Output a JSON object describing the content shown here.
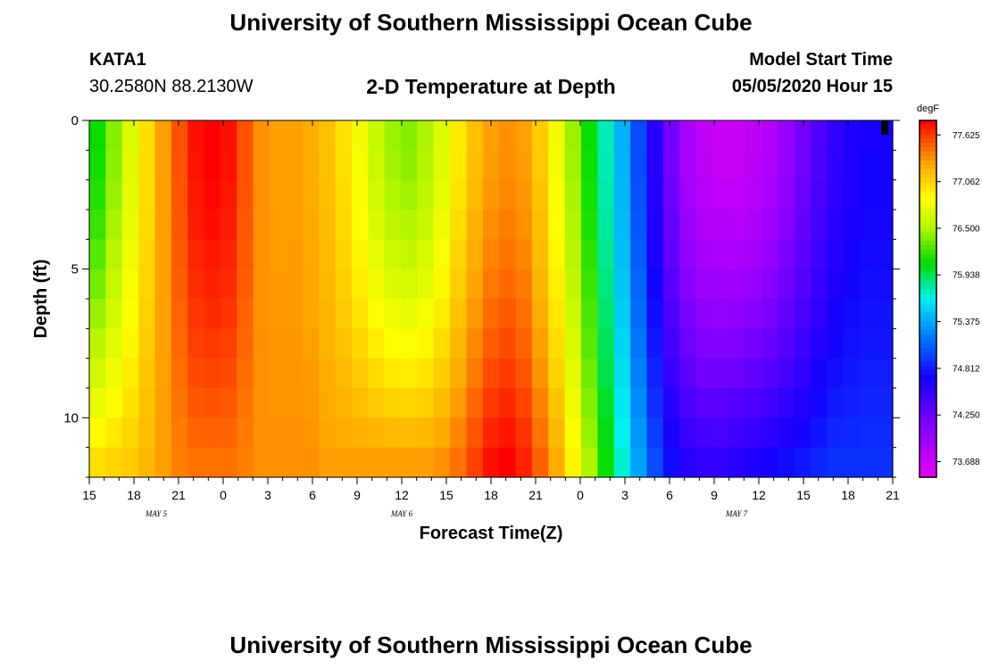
{
  "header": {
    "title": "University of Southern Mississippi Ocean Cube",
    "station": "KATA1",
    "coords": "30.2580N 88.2130W",
    "plot_title": "2-D Temperature at Depth",
    "model_label": "Model Start Time",
    "model_time": "05/05/2020 Hour 15"
  },
  "footer": {
    "title": "University of Southern Mississippi Ocean Cube"
  },
  "chart_data": {
    "type": "heatmap",
    "title": "2-D Temperature at Depth",
    "xlabel": "Forecast Time(Z)",
    "ylabel": "Depth (ft)",
    "x_hours_range": [
      0,
      54
    ],
    "x_tick_labels": [
      "15",
      "18",
      "21",
      "0",
      "3",
      "6",
      "9",
      "12",
      "15",
      "18",
      "21",
      "0",
      "3",
      "6",
      "9",
      "12",
      "15",
      "18",
      "21"
    ],
    "date_labels": [
      {
        "label": "MAY 5",
        "hour": 4.5
      },
      {
        "label": "MAY 6",
        "hour": 21
      },
      {
        "label": "MAY 7",
        "hour": 43.5
      }
    ],
    "y_range_ft": [
      0,
      12
    ],
    "y_tick_labels": [
      "0",
      "5",
      "10"
    ],
    "y_tick_values": [
      0,
      5,
      10
    ],
    "colorbar": {
      "unit": "degF",
      "min": 73.5,
      "max": 77.8,
      "labels": [
        "77.625",
        "77.062",
        "76.500",
        "75.938",
        "75.375",
        "74.812",
        "74.250",
        "73.688"
      ]
    },
    "z_columns_surface_degF": [
      76.1,
      76.4,
      76.7,
      77.0,
      77.3,
      77.55,
      77.75,
      77.8,
      77.75,
      77.55,
      77.35,
      77.3,
      77.3,
      77.25,
      77.15,
      77.0,
      76.8,
      76.6,
      76.45,
      76.4,
      76.5,
      76.7,
      76.95,
      77.15,
      77.3,
      77.35,
      77.3,
      77.1,
      76.8,
      76.45,
      76.1,
      75.75,
      75.4,
      75.0,
      74.6,
      74.2,
      73.9,
      73.75,
      73.7,
      73.7,
      73.75,
      73.85,
      74.0,
      74.2,
      74.4,
      74.55,
      74.65,
      74.7,
      74.7
    ],
    "z_columns_bottom_degF": [
      77.0,
      77.05,
      77.1,
      77.2,
      77.3,
      77.4,
      77.45,
      77.45,
      77.45,
      77.4,
      77.35,
      77.35,
      77.35,
      77.35,
      77.3,
      77.3,
      77.3,
      77.3,
      77.3,
      77.3,
      77.3,
      77.35,
      77.45,
      77.6,
      77.75,
      77.8,
      77.7,
      77.5,
      77.25,
      76.9,
      76.5,
      76.1,
      75.7,
      75.35,
      75.0,
      74.75,
      74.6,
      74.55,
      74.55,
      74.6,
      74.65,
      74.7,
      74.75,
      74.8,
      74.85,
      74.9,
      74.9,
      74.9,
      74.9
    ]
  }
}
